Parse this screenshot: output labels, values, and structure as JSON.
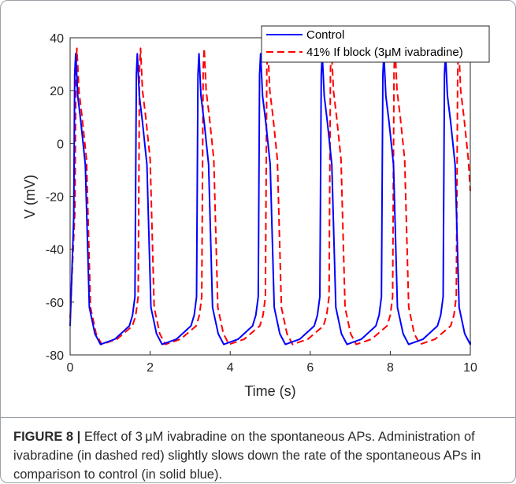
{
  "chart_data": {
    "type": "line",
    "xlabel": "Time (s)",
    "ylabel": "V (mV)",
    "xlim": [
      0,
      10
    ],
    "ylim": [
      -80,
      40
    ],
    "xticks": [
      0,
      2,
      4,
      6,
      8,
      10
    ],
    "yticks": [
      -80,
      -60,
      -40,
      -20,
      0,
      20,
      40
    ],
    "legend_position": "top-right",
    "series": [
      {
        "name": "Control",
        "color": "#0000ff",
        "style": "solid",
        "spike_times": [
          0.14,
          1.68,
          3.22,
          4.76,
          6.3,
          7.84,
          9.38
        ],
        "peak": 34,
        "minimum": -76,
        "start_value": -69,
        "end_value": -75
      },
      {
        "name": "41% If block (3μM ivabradine)",
        "color": "#ff0000",
        "style": "dashed",
        "spike_times": [
          0.17,
          1.76,
          3.35,
          4.94,
          6.53,
          8.12,
          9.71
        ],
        "peak": 36,
        "minimum": -76,
        "start_value": -66,
        "end_value": -18
      }
    ]
  },
  "caption": {
    "figure_label": "FIGURE 8 |",
    "text": " Effect of 3 μM ivabradine on the spontaneous APs. Administration of ivabradine (in dashed red) slightly slows down the rate of the spontaneous APs in comparison to control (in solid blue)."
  }
}
